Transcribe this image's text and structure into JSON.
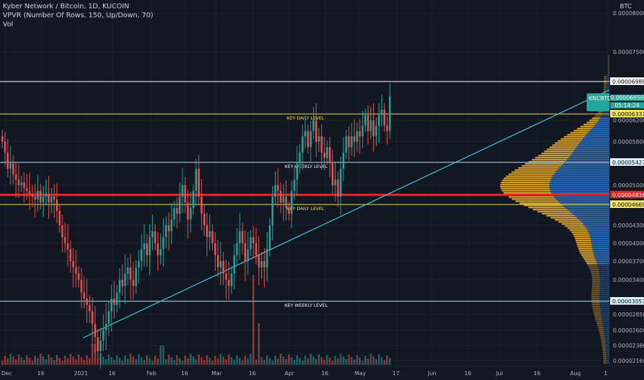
{
  "header": {
    "line1": "Kyber Network / Bitcoin, 1D, KUCOIN",
    "line2": "VPVR (Number Of Rows, 150, Up/Down, 70)",
    "line3": "Vol"
  },
  "axis": {
    "currency": "BTC",
    "y_ticks": [
      "0.00008000",
      "0.00007500",
      "0.00006200",
      "0.00005800",
      "0.00005000",
      "0.00004300",
      "0.00004000",
      "0.00003700",
      "0.00003400",
      "0.00002850",
      "0.00002600",
      "0.00002380",
      "0.00002160"
    ],
    "x_ticks": [
      "Dec",
      "16",
      "2021",
      "16",
      "Feb",
      "16",
      "Mar",
      "16",
      "Apr",
      "16",
      "May",
      "17",
      "Jun",
      "16",
      "Jul",
      "16",
      "Aug",
      "1"
    ]
  },
  "ticker": {
    "symbol": "KNCBTC",
    "last_price": "0.00006650",
    "countdown": "05:14:24"
  },
  "levels": [
    {
      "label": "",
      "price_tag": "0.00006988",
      "color": "#ffffff"
    },
    {
      "label": "KEY DAILY LEVEL",
      "price_tag": "0.00006337",
      "color": "#f0e442"
    },
    {
      "label": "KEY WEEKLY LEVEL",
      "price_tag": "0.00005427",
      "color": "#b3f0ff"
    },
    {
      "label": "",
      "price_tag": "0.00004836",
      "color": "#ff2222"
    },
    {
      "label": "KEY DAILY LEVEL",
      "price_tag": "0.00004669",
      "color": "#f0e442"
    },
    {
      "label": "KEY WEEKLY LEVEL",
      "price_tag": "0.00003053",
      "color": "#b3f0ff"
    }
  ],
  "colors": {
    "background": "#131722",
    "up": "#26a69a",
    "down": "#ef5350",
    "trendline": "#3fd0e0",
    "vp_up": "#2a6db8",
    "vp_down": "#d8a02a"
  },
  "chart_data": {
    "type": "candlestick",
    "title": "Kyber Network / Bitcoin, 1D, KUCOIN",
    "series_note": "daily candles, values approximate",
    "closes": [
      5.8,
      5.6,
      5.3,
      5.4,
      5.2,
      5.1,
      5.0,
      5.05,
      4.95,
      4.9,
      4.85,
      4.8,
      4.75,
      4.9,
      4.7,
      4.8,
      4.85,
      4.7,
      4.8,
      4.75,
      4.55,
      4.3,
      4.1,
      4.0,
      3.9,
      3.7,
      3.6,
      3.5,
      3.4,
      3.2,
      3.1,
      3.0,
      2.9,
      2.7,
      2.5,
      2.3,
      2.45,
      2.6,
      2.7,
      2.9,
      3.1,
      3.0,
      3.2,
      3.4,
      3.3,
      3.5,
      3.6,
      3.4,
      3.3,
      3.6,
      3.7,
      3.9,
      4.0,
      3.8,
      4.1,
      4.2,
      4.0,
      3.8,
      3.9,
      4.1,
      4.3,
      4.2,
      4.4,
      4.6,
      4.5,
      4.8,
      5.0,
      4.7,
      4.4,
      4.6,
      4.9,
      5.3,
      4.8,
      4.5,
      4.3,
      4.1,
      4.2,
      4.0,
      3.8,
      3.6,
      3.7,
      3.5,
      3.4,
      3.3,
      3.5,
      3.8,
      4.0,
      4.2,
      4.0,
      3.7,
      3.9,
      4.1,
      4.0,
      3.8,
      3.6,
      3.7,
      3.6,
      3.9,
      4.3,
      4.8,
      5.0,
      4.9,
      4.7,
      4.8,
      4.6,
      4.5,
      4.9,
      5.1,
      5.4,
      5.6,
      5.9,
      6.0,
      5.7,
      6.0,
      6.2,
      5.8,
      5.9,
      5.6,
      5.5,
      5.7,
      5.4,
      5.0,
      5.1,
      4.8,
      5.3,
      5.6,
      5.9,
      5.7,
      5.9,
      5.8,
      6.0,
      5.9,
      6.1,
      6.3,
      6.0,
      6.2,
      5.9,
      6.1,
      6.3,
      6.4,
      6.1,
      6.0,
      6.65
    ],
    "ylim": [
      2.1e-05,
      8.9e-05
    ],
    "xlabel": "",
    "ylabel": ""
  }
}
